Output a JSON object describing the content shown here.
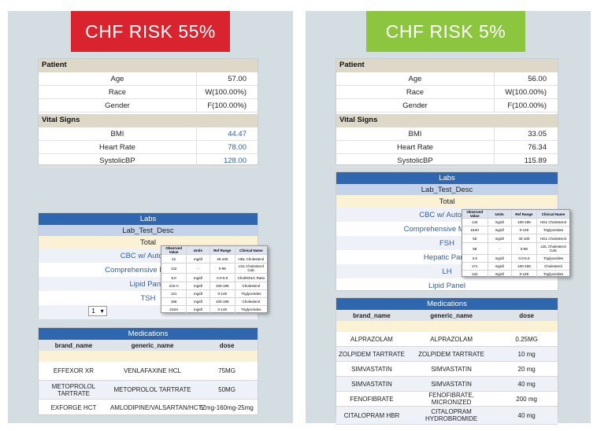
{
  "left": {
    "risk_label": "CHF RISK 55%",
    "risk_color": "#d9232e",
    "patient": {
      "header": "Patient",
      "rows": [
        {
          "label": "Age",
          "value": "57.00"
        },
        {
          "label": "Race",
          "value": "W(100.00%)"
        },
        {
          "label": "Gender",
          "value": "F(100.00%)"
        }
      ]
    },
    "vitals": {
      "header": "Vital Signs",
      "rows": [
        {
          "label": "BMI",
          "value": "44.47"
        },
        {
          "label": "Heart Rate",
          "value": "78.00"
        },
        {
          "label": "SystolicBP",
          "value": "128.00"
        }
      ]
    },
    "labs": {
      "header": "Labs",
      "desc": "Lab_Test_Desc",
      "total": "Total",
      "items": [
        "CBC w/ Auto Diff",
        "Comprehensive Metabolic",
        "Lipid Panel",
        "TSH"
      ],
      "pager_value": "1"
    },
    "popup": {
      "columns": [
        "Observed Value",
        "Units",
        "Ref Range",
        "Clinical Name"
      ],
      "rows": [
        [
          "42",
          "mg/dl",
          "40-100",
          "HDL Cholesterol"
        ],
        [
          "142",
          "-",
          "0-99",
          "LDL Cholesterol Calc"
        ],
        [
          "5.0",
          "mg/dl",
          "0.0-5.0",
          "Chol/HDLC Ratio"
        ],
        [
          "216 H",
          "mg/dl",
          "100-199",
          "Cholesterol"
        ],
        [
          "131",
          "mg/dl",
          "0-149",
          "Triglycerides"
        ],
        [
          "168",
          "mg/dl",
          "100-199",
          "Cholesterol"
        ],
        [
          "216H",
          "mg/dl",
          "0-149",
          "Triglycerides"
        ]
      ]
    },
    "meds": {
      "header": "Medications",
      "columns": [
        "brand_name",
        "generic_name",
        "dose"
      ],
      "rows": [
        [
          "EFFEXOR XR",
          "VENLAFAXINE HCL",
          "75MG"
        ],
        [
          "METOPROLOL TARTRATE",
          "METOPROLOL TARTRATE",
          "50MG"
        ],
        [
          "EXFORGE HCT",
          "AMLODIPINE/VALSARTAN/HCTZ",
          "5 mg-160mg-25mg"
        ]
      ]
    }
  },
  "right": {
    "risk_label": "CHF RISK 5%",
    "risk_color": "#8cc63f",
    "patient": {
      "header": "Patient",
      "rows": [
        {
          "label": "Age",
          "value": "56.00"
        },
        {
          "label": "Race",
          "value": "W(100.00%)"
        },
        {
          "label": "Gender",
          "value": "F(100.00%)"
        }
      ]
    },
    "vitals": {
      "header": "Vital Signs",
      "rows": [
        {
          "label": "BMI",
          "value": "33.05"
        },
        {
          "label": "Heart Rate",
          "value": "76.34"
        },
        {
          "label": "SystolicBP",
          "value": "115.89"
        }
      ]
    },
    "labs": {
      "header": "Labs",
      "desc": "Lab_Test_Desc",
      "total": "Total",
      "items": [
        "CBC w/ Auto Diff",
        "Comprehensive Metabolic",
        "FSH",
        "Hepatic Panel",
        "LH",
        "Lipid Panel"
      ]
    },
    "popup": {
      "columns": [
        "Observed Value",
        "Units",
        "Ref Range",
        "Clinical Name"
      ],
      "rows": [
        [
          "144",
          "mg/dl",
          "100-199",
          "HDL Cholesterol"
        ],
        [
          "154H",
          "mg/dl",
          "0-149",
          "Triglycerides"
        ],
        [
          "55",
          "mg/dl",
          "40-100",
          "HDL Cholesterol"
        ],
        [
          "58",
          "-",
          "0-99",
          "LDL Cholesterol Calc"
        ],
        [
          "2.6",
          "mg/dl",
          "0.0-5.0",
          "Triglycerides"
        ],
        [
          "171",
          "mg/dl",
          "100-199",
          "Cholesterol"
        ],
        [
          "122",
          "mg/dl",
          "0-149",
          "Triglycerides"
        ]
      ]
    },
    "meds": {
      "header": "Medications",
      "columns": [
        "brand_name",
        "generic_name",
        "dose"
      ],
      "rows": [
        [
          "ALPRAZOLAM",
          "ALPRAZOLAM",
          "0.25MG"
        ],
        [
          "ZOLPIDEM TARTRATE",
          "ZOLPIDEM TARTRATE",
          "10 mg"
        ],
        [
          "SIMVASTATIN",
          "SIMVASTATIN",
          "20 mg"
        ],
        [
          "SIMVASTATIN",
          "SIMVASTATIN",
          "40 mg"
        ],
        [
          "FENOFIBRATE",
          "FENOFIBRATE, MICRONIZED",
          "200 mg"
        ],
        [
          "CITALOPRAM HBR",
          "CITALOPRAM HYDROBROMIDE",
          "40 mg"
        ]
      ]
    }
  }
}
